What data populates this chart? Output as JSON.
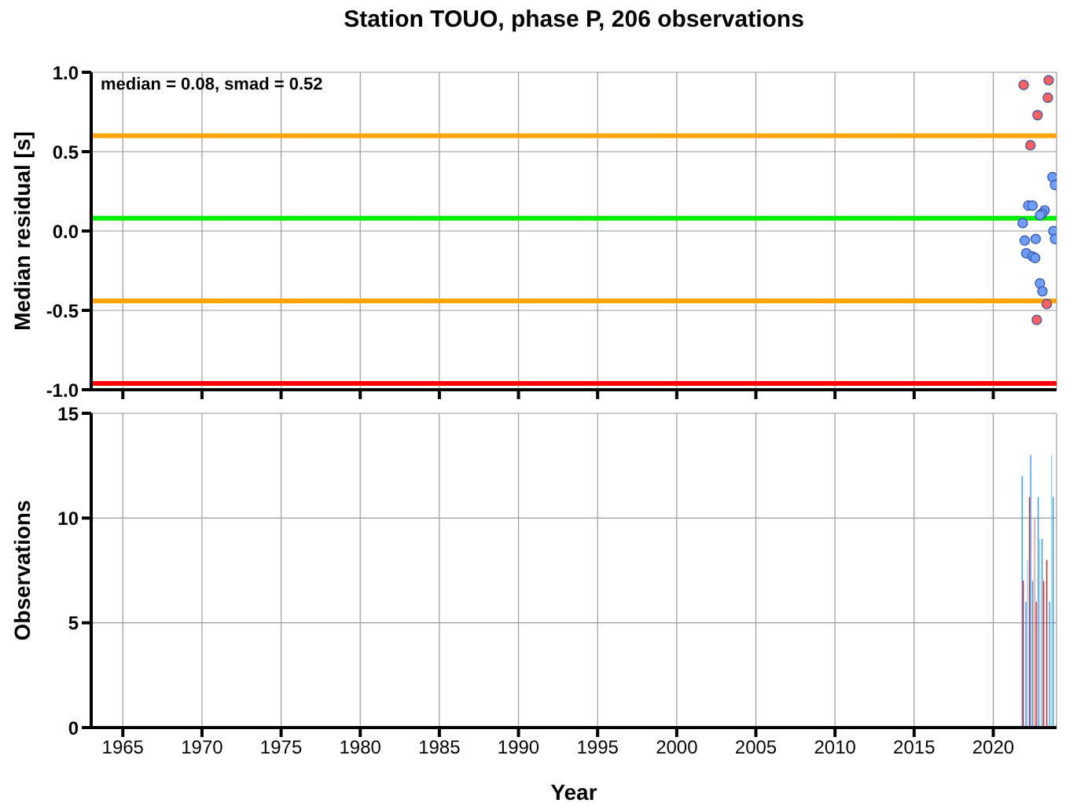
{
  "chart_data": [
    {
      "type": "scatter",
      "title": "Station TOUO, phase P, 206 observations",
      "ylabel": "Median residual [s]",
      "annotations": [
        "median = 0.08, smad = 0.52"
      ],
      "x": [
        2021.92,
        2023.5,
        2023.45,
        2022.8,
        2022.35,
        2023.38,
        2022.75,
        2023.74,
        2023.9,
        2022.21,
        2022.48,
        2023.25,
        2023.08,
        2022.95,
        2021.86,
        2023.8,
        2023.9,
        2021.99,
        2022.68,
        2022.09,
        2022.48,
        2022.65,
        2022.95,
        2023.11
      ],
      "values": [
        0.92,
        0.95,
        0.84,
        0.73,
        0.54,
        -0.46,
        -0.56,
        0.34,
        0.29,
        0.16,
        0.16,
        0.13,
        0.11,
        0.1,
        0.05,
        0.0,
        -0.05,
        -0.06,
        -0.05,
        -0.14,
        -0.16,
        -0.17,
        -0.33,
        -0.38
      ],
      "colors": [
        "#ff6060",
        "#ff6060",
        "#ff6060",
        "#ff6060",
        "#ff6060",
        "#ff6060",
        "#ff6060",
        "#6d9eff",
        "#6d9eff",
        "#6d9eff",
        "#6d9eff",
        "#6d9eff",
        "#6d9eff",
        "#6d9eff",
        "#6d9eff",
        "#6d9eff",
        "#6d9eff",
        "#6d9eff",
        "#6d9eff",
        "#6d9eff",
        "#6d9eff",
        "#6d9eff",
        "#6d9eff",
        "#6d9eff"
      ],
      "xlim": [
        1963,
        2024
      ],
      "xticks": [
        1965,
        1970,
        1975,
        1980,
        1985,
        1990,
        1995,
        2000,
        2005,
        2010,
        2015,
        2020
      ],
      "ylim": [
        -1,
        1
      ],
      "yticks": [
        {
          "value": -1,
          "label": "-1.0"
        },
        {
          "value": -0.5,
          "label": "-0.5"
        },
        {
          "value": 0,
          "label": "0.0"
        },
        {
          "value": 0.5,
          "label": "0.5"
        },
        {
          "value": 1,
          "label": "1.0"
        }
      ],
      "ref_lines": [
        {
          "axis": "y",
          "value": 0.6,
          "color": "#ffa500"
        },
        {
          "axis": "y",
          "value": 0.08,
          "color": "#00ee00"
        },
        {
          "axis": "y",
          "value": -0.44,
          "color": "#ffa500"
        },
        {
          "axis": "y",
          "value": -0.96,
          "color": "#ff0000"
        }
      ],
      "grid": true,
      "tick_labels": "y",
      "marker": "circle"
    },
    {
      "type": "bar",
      "xlabel": "Year",
      "ylabel": "Observations",
      "x": [
        2021.83,
        2021.9,
        2022.07,
        2022.17,
        2022.3,
        2022.37,
        2022.5,
        2022.62,
        2022.72,
        2022.84,
        2022.94,
        2023.09,
        2023.19,
        2023.39,
        2023.56,
        2023.69,
        2023.79
      ],
      "values": [
        12,
        7,
        6,
        8,
        11,
        13,
        7,
        10,
        6,
        11,
        9,
        9,
        7,
        8,
        6,
        13,
        11
      ],
      "colors": [
        "#1e90ff",
        "#ff0000",
        "#1e90ff",
        "#87cefa",
        "#ff0000",
        "#1e90ff",
        "#1e90ff",
        "#ff8080",
        "#ff0000",
        "#1e90ff",
        "#87cefa",
        "#1e90ff",
        "#ff0000",
        "#ff0000",
        "#1e90ff",
        "#87cefa",
        "#1e90ff"
      ],
      "xlim": [
        1963,
        2024
      ],
      "xticks": [
        1965,
        1970,
        1975,
        1980,
        1985,
        1990,
        1995,
        2000,
        2005,
        2010,
        2015,
        2020
      ],
      "ylim": [
        0,
        15
      ],
      "yticks": [
        0,
        5,
        10,
        15
      ],
      "grid": true
    }
  ]
}
